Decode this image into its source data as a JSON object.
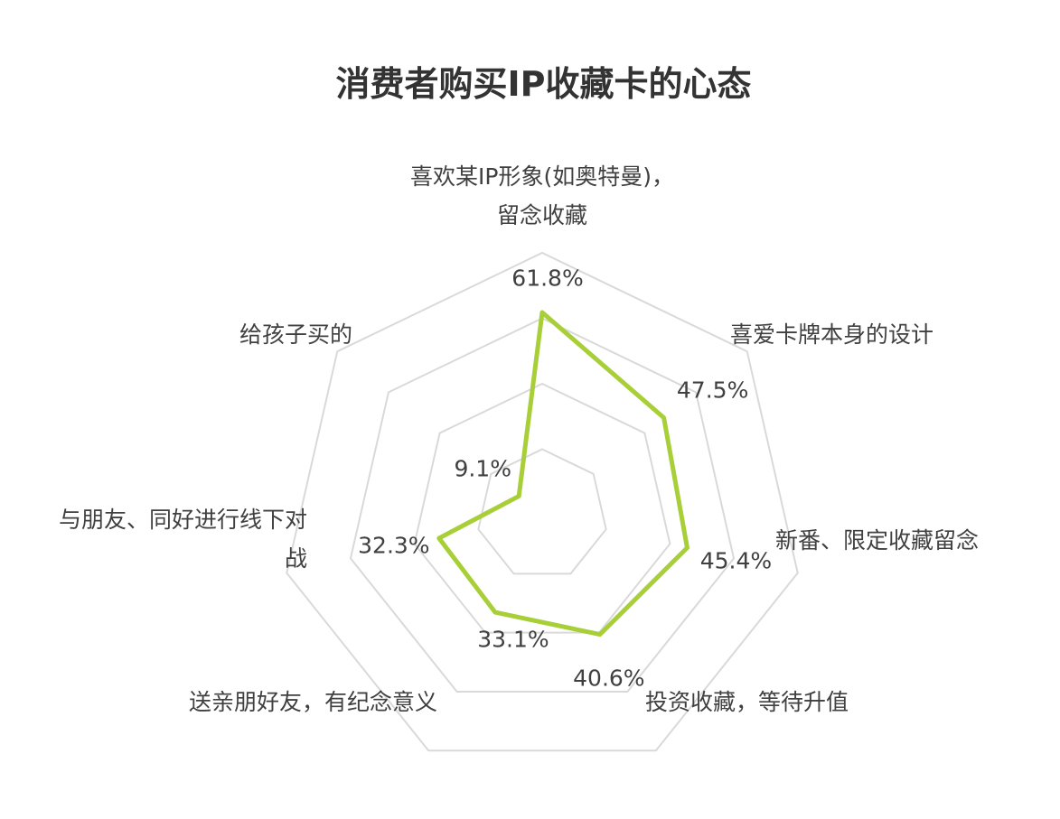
{
  "chart_data": {
    "type": "radar",
    "title": "消费者购买IP收藏卡的心态",
    "axis_max": 80,
    "grid_levels": [
      20,
      40,
      60,
      80
    ],
    "categories": [
      "喜欢某IP形象(如奥特曼)，留念收藏",
      "喜爱卡牌本身的设计",
      "新番、限定收藏留念",
      "投资收藏，等待升值",
      "送亲朋好友，有纪念意义",
      "与朋友、同好进行线下对战",
      "给孩子买的"
    ],
    "category_lines": [
      [
        "喜欢某IP形象(如奥特曼)，",
        "留念收藏"
      ],
      [
        "喜爱卡牌本身的设计"
      ],
      [
        "新番、限定收藏留念"
      ],
      [
        "投资收藏，等待升值"
      ],
      [
        "送亲朋好友，有纪念意义"
      ],
      [
        "与朋友、同好进行线下对",
        "战"
      ],
      [
        "给孩子买的"
      ]
    ],
    "values": [
      61.8,
      47.5,
      45.4,
      40.6,
      33.1,
      32.3,
      9.1
    ],
    "value_labels": [
      "61.8%",
      "47.5%",
      "45.4%",
      "40.6%",
      "33.1%",
      "32.3%",
      "9.1%"
    ],
    "series_color": "#a8cf38",
    "grid_color": "#d9d9d9"
  }
}
